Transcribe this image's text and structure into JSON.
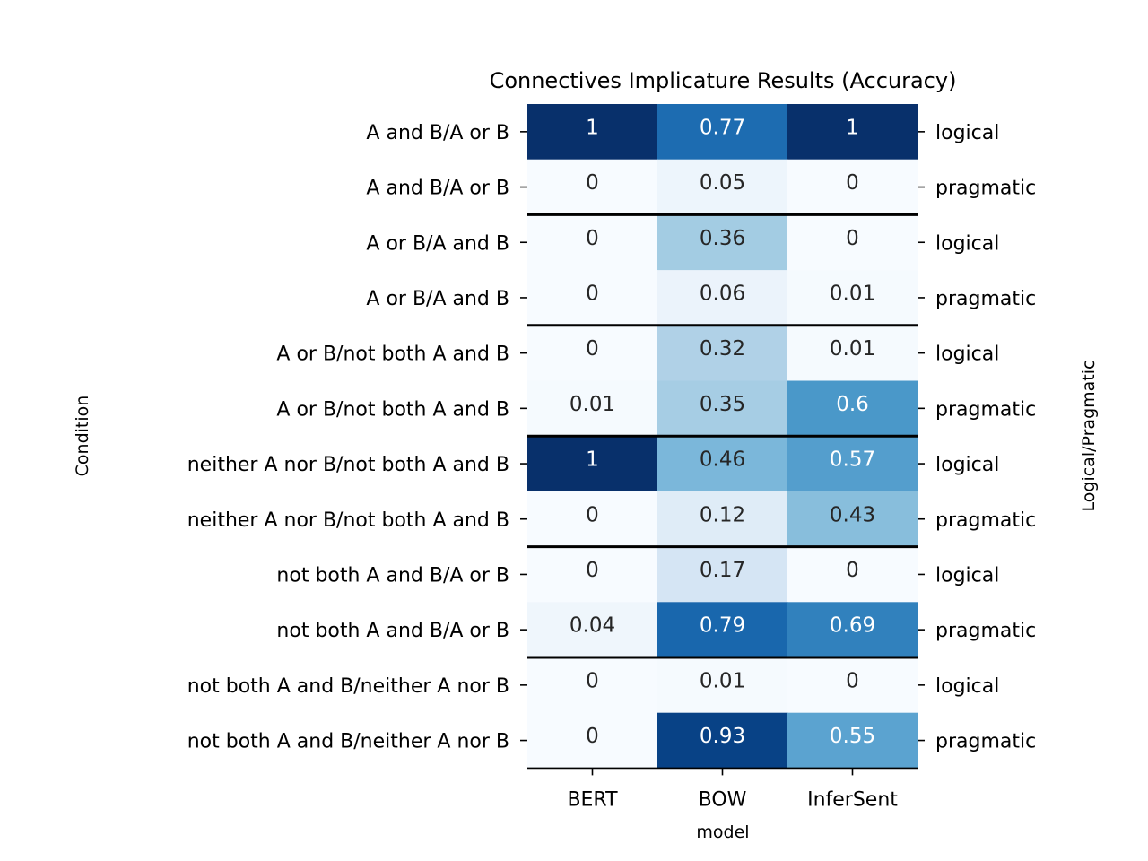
{
  "chart_data": {
    "type": "heatmap",
    "title": "Connectives Implicature Results (Accuracy)",
    "xlabel": "model",
    "ylabel": "Condition",
    "ylabel_right": "Logical/Pragmatic",
    "columns": [
      "BERT",
      "BOW",
      "InferSent"
    ],
    "rows": [
      {
        "condition": "A and B/A or B",
        "type": "logical",
        "values": [
          "1",
          "0.77",
          "1"
        ]
      },
      {
        "condition": "A and B/A or B",
        "type": "pragmatic",
        "values": [
          "0",
          "0.05",
          "0"
        ]
      },
      {
        "condition": "A or B/A and B",
        "type": "logical",
        "values": [
          "0",
          "0.36",
          "0"
        ]
      },
      {
        "condition": "A or B/A and B",
        "type": "pragmatic",
        "values": [
          "0",
          "0.06",
          "0.01"
        ]
      },
      {
        "condition": "A or B/not both A and B",
        "type": "logical",
        "values": [
          "0",
          "0.32",
          "0.01"
        ]
      },
      {
        "condition": "A or B/not both A and B",
        "type": "pragmatic",
        "values": [
          "0.01",
          "0.35",
          "0.6"
        ]
      },
      {
        "condition": "neither A nor B/not both A and B",
        "type": "logical",
        "values": [
          "1",
          "0.46",
          "0.57"
        ]
      },
      {
        "condition": "neither A nor B/not both A and B",
        "type": "pragmatic",
        "values": [
          "0",
          "0.12",
          "0.43"
        ]
      },
      {
        "condition": "not both A and B/A or B",
        "type": "logical",
        "values": [
          "0",
          "0.17",
          "0"
        ]
      },
      {
        "condition": "not both A and B/A or B",
        "type": "pragmatic",
        "values": [
          "0.04",
          "0.79",
          "0.69"
        ]
      },
      {
        "condition": "not both A and B/neither A nor B",
        "type": "logical",
        "values": [
          "0",
          "0.01",
          "0"
        ]
      },
      {
        "condition": "not both A and B/neither A nor B",
        "type": "pragmatic",
        "values": [
          "0",
          "0.93",
          "0.55"
        ]
      }
    ],
    "color_range": [
      0,
      1
    ],
    "colormap": "Blues",
    "group_separators_after_rows": [
      2,
      4,
      6,
      8,
      10
    ],
    "colorbar": false
  }
}
